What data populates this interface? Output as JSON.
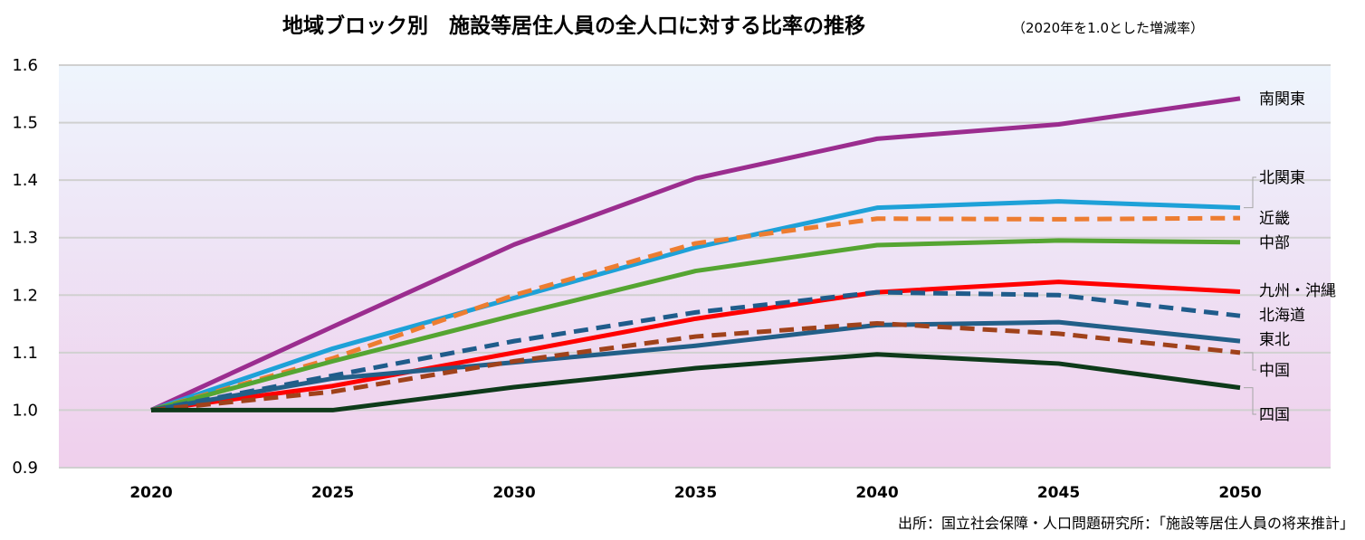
{
  "chart_data": {
    "type": "line",
    "title": "地域ブロック別　施設等居住人員の全人口に対する比率の推移",
    "subtitle": "（2020年を1.0とした増減率）",
    "source": "出所：国立社会保障・人口問題研究所：「施設等居住人員の将来推計」",
    "xlabel": "",
    "ylabel": "",
    "ylim": [
      0.9,
      1.6
    ],
    "yticks": [
      "0.9",
      "1.0",
      "1.1",
      "1.2",
      "1.3",
      "1.4",
      "1.5",
      "1.6"
    ],
    "x": [
      "2020",
      "2025",
      "2030",
      "2035",
      "2040",
      "2045",
      "2050"
    ],
    "grid": true,
    "legend": "inline-right",
    "series": [
      {
        "name": "南関東",
        "color": "#9b2d8f",
        "dashed": false,
        "values": [
          1.0,
          1.145,
          1.288,
          1.403,
          1.472,
          1.497,
          1.542
        ]
      },
      {
        "name": "北関東",
        "color": "#1ea1d8",
        "dashed": false,
        "values": [
          1.0,
          1.107,
          1.195,
          1.283,
          1.352,
          1.363,
          1.352
        ]
      },
      {
        "name": "近畿",
        "color": "#ed7d31",
        "dashed": true,
        "values": [
          1.0,
          1.09,
          1.2,
          1.29,
          1.333,
          1.332,
          1.334
        ]
      },
      {
        "name": "中部",
        "color": "#55a532",
        "dashed": false,
        "values": [
          1.0,
          1.085,
          1.165,
          1.242,
          1.287,
          1.295,
          1.292
        ]
      },
      {
        "name": "九州・沖縄",
        "color": "#ff0000",
        "dashed": false,
        "values": [
          1.0,
          1.042,
          1.1,
          1.159,
          1.205,
          1.223,
          1.206
        ]
      },
      {
        "name": "北海道",
        "color": "#1f5c8b",
        "dashed": true,
        "values": [
          1.0,
          1.06,
          1.12,
          1.17,
          1.205,
          1.2,
          1.164
        ]
      },
      {
        "name": "東北",
        "color": "#225f88",
        "dashed": false,
        "values": [
          1.0,
          1.055,
          1.083,
          1.112,
          1.148,
          1.153,
          1.12
        ]
      },
      {
        "name": "中国",
        "color": "#a0421b",
        "dashed": true,
        "values": [
          1.0,
          1.032,
          1.085,
          1.128,
          1.151,
          1.133,
          1.1
        ]
      },
      {
        "name": "四国",
        "color": "#0e3a1a",
        "dashed": false,
        "values": [
          1.0,
          1.0,
          1.04,
          1.073,
          1.097,
          1.081,
          1.039
        ]
      }
    ]
  }
}
